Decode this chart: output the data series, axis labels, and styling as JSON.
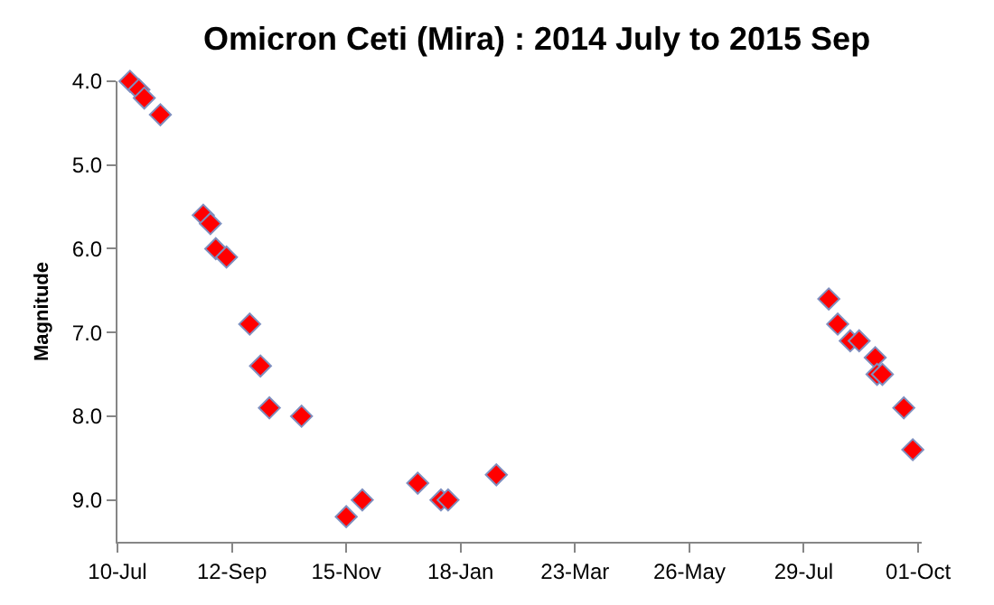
{
  "chart_data": {
    "type": "scatter",
    "title": "Omicron Ceti (Mira) : 2014 July to 2015 Sep",
    "ylabel": "Magnitude",
    "x": [
      "2014-07-17",
      "2014-07-22",
      "2014-07-25",
      "2014-08-03",
      "2014-08-27",
      "2014-08-31",
      "2014-09-03",
      "2014-09-09",
      "2014-09-22",
      "2014-09-28",
      "2014-10-03",
      "2014-10-21",
      "2014-11-15",
      "2014-11-24",
      "2014-12-25",
      "2015-01-07",
      "2015-01-11",
      "2015-02-07",
      "2015-08-12",
      "2015-08-17",
      "2015-08-24",
      "2015-08-29",
      "2015-09-07",
      "2015-09-08",
      "2015-09-11",
      "2015-09-23",
      "2015-09-28"
    ],
    "series": [
      {
        "color": "#ff0000",
        "values": [
          4.0,
          4.1,
          4.2,
          4.4,
          5.6,
          5.7,
          6.0,
          6.1,
          6.9,
          7.4,
          7.9,
          8.0,
          9.2,
          9.0,
          8.8,
          9.0,
          9.0,
          8.7,
          6.6,
          6.9,
          7.1,
          7.1,
          7.3,
          7.5,
          7.5,
          7.9,
          8.4
        ]
      }
    ],
    "xlim": [
      "2014-07-10",
      "2015-10-03"
    ],
    "xticks": [
      {
        "value": "2014-07-10",
        "label": "10-Jul"
      },
      {
        "value": "2014-09-12",
        "label": "12-Sep"
      },
      {
        "value": "2014-11-15",
        "label": "15-Nov"
      },
      {
        "value": "2015-01-18",
        "label": "18-Jan"
      },
      {
        "value": "2015-03-23",
        "label": "23-Mar"
      },
      {
        "value": "2015-05-26",
        "label": "26-May"
      },
      {
        "value": "2015-07-29",
        "label": "29-Jul"
      },
      {
        "value": "2015-10-01",
        "label": "01-Oct"
      }
    ],
    "ylim": [
      9.5,
      4.0
    ],
    "yticks": [
      {
        "value": 4,
        "label": "4.0"
      },
      {
        "value": 5,
        "label": "5.0"
      },
      {
        "value": 6,
        "label": "6.0"
      },
      {
        "value": 7,
        "label": "7.0"
      },
      {
        "value": 8,
        "label": "8.0"
      },
      {
        "value": 9,
        "label": "9.0"
      }
    ],
    "marker": "diamond"
  }
}
